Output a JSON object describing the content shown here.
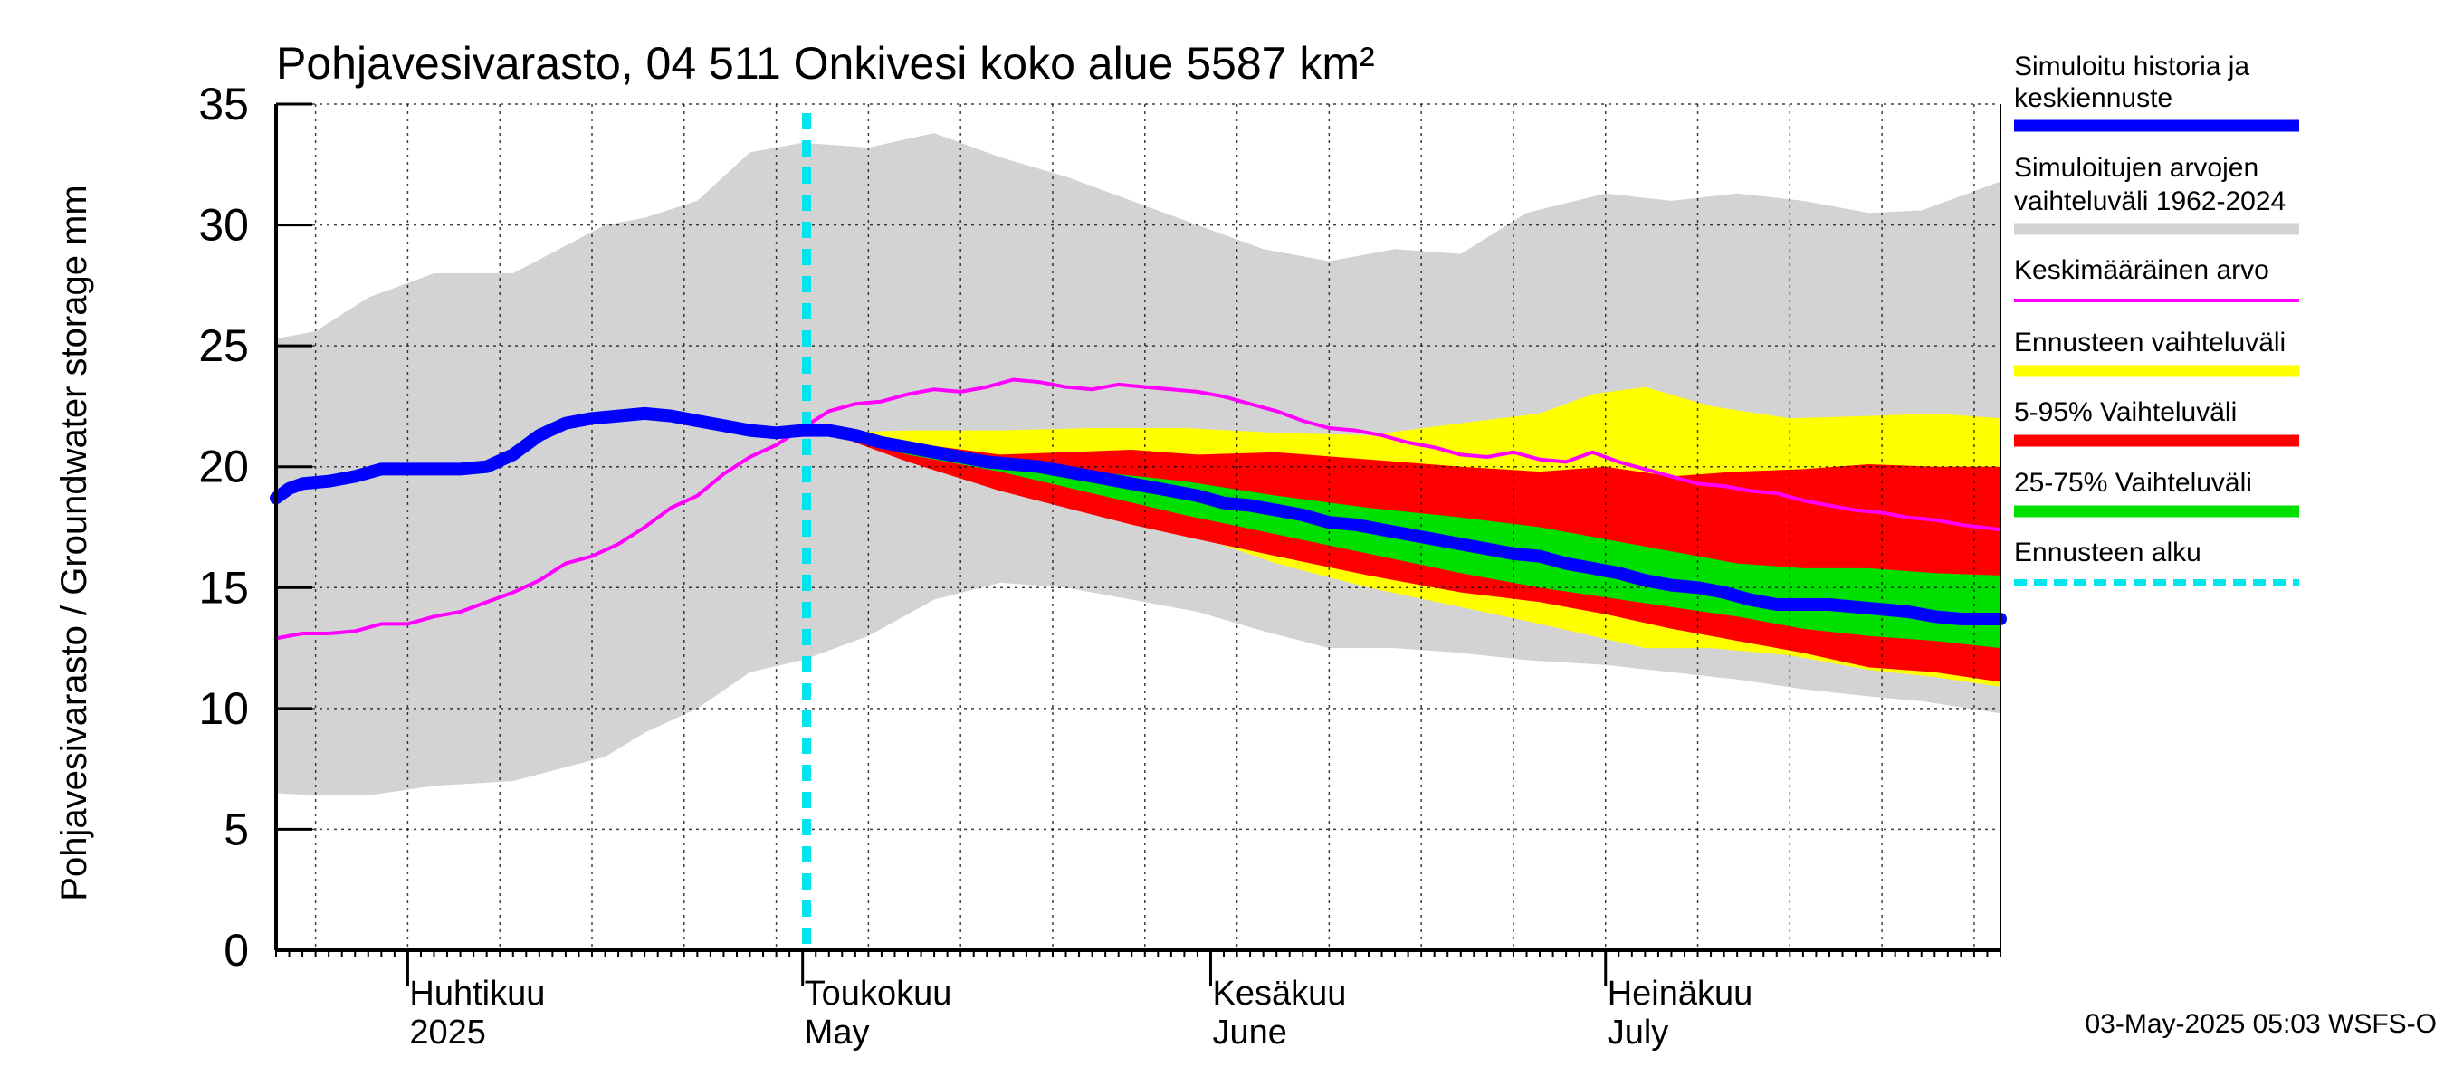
{
  "chart_data": {
    "type": "area",
    "title": "Pohjavesivarasto, 04 511 Onkivesi koko alue 5587 km²",
    "ylabel": "Pohjavesivarasto / Groundwater storage   mm",
    "ylim": [
      0,
      35
    ],
    "yticks": [
      "0",
      "5",
      "10",
      "15",
      "20",
      "25",
      "30",
      "35"
    ],
    "ytick_values": [
      0,
      5,
      10,
      15,
      20,
      25,
      30,
      35
    ],
    "x_start": "2025-03-22",
    "x_end": "2025-07-31",
    "forecast_start": "2025-05-03",
    "months": [
      {
        "line1": "Huhtikuu",
        "line2": "2025",
        "day": 10
      },
      {
        "line1": "Toukokuu",
        "line2": "May",
        "day": 40
      },
      {
        "line1": "Kesäkuu",
        "line2": "June",
        "day": 71
      },
      {
        "line1": "Heinäkuu",
        "line2": "July",
        "day": 101
      }
    ],
    "series": [
      {
        "name": "Simuloitujen arvojen vaihteluväli 1962-2024",
        "color": "#d3d3d3",
        "days": [
          0,
          3,
          7,
          12,
          18,
          25,
          28,
          32,
          36,
          40,
          45,
          50,
          55,
          60,
          65,
          70,
          75,
          80,
          85,
          90,
          95,
          101,
          106,
          111,
          116,
          121,
          125,
          131
        ],
        "upper": [
          25.3,
          25.6,
          27.0,
          28.0,
          28.0,
          30.0,
          30.3,
          31.0,
          33.0,
          33.4,
          33.2,
          33.8,
          32.8,
          32.0,
          31.0,
          30.0,
          29.0,
          28.5,
          29.0,
          28.8,
          30.5,
          31.3,
          31.0,
          31.3,
          31.0,
          30.5,
          30.6,
          31.8
        ],
        "lower": [
          6.5,
          6.4,
          6.4,
          6.8,
          7.0,
          8.0,
          9.0,
          10.0,
          11.5,
          12.0,
          13.0,
          14.5,
          15.2,
          15.0,
          14.5,
          14.0,
          13.2,
          12.5,
          12.5,
          12.3,
          12.0,
          11.8,
          11.5,
          11.2,
          10.8,
          10.5,
          10.3,
          9.8
        ]
      },
      {
        "name": "Ennusteen vaihteluväli",
        "color": "#ffff00",
        "days": [
          42,
          48,
          55,
          62,
          69,
          76,
          83,
          90,
          96,
          100,
          104,
          109,
          115,
          121,
          126,
          131
        ],
        "upper": [
          21.4,
          21.5,
          21.5,
          21.6,
          21.6,
          21.4,
          21.3,
          21.8,
          22.2,
          23.0,
          23.3,
          22.5,
          22.0,
          22.1,
          22.2,
          22.0
        ],
        "lower": [
          21.4,
          20.3,
          19.2,
          18.3,
          17.3,
          16.0,
          15.0,
          14.2,
          13.5,
          13.0,
          12.5,
          12.5,
          12.2,
          11.6,
          11.3,
          10.9
        ]
      },
      {
        "name": "5-95% Vaihteluväli",
        "color": "#ff0000",
        "days": [
          42,
          48,
          55,
          60,
          65,
          70,
          76,
          83,
          90,
          96,
          101,
          106,
          111,
          116,
          121,
          126,
          131
        ],
        "upper": [
          21.4,
          21.0,
          20.5,
          20.6,
          20.7,
          20.5,
          20.6,
          20.3,
          20.0,
          19.8,
          20.0,
          19.6,
          19.8,
          19.9,
          20.1,
          20.0,
          20.0
        ],
        "lower": [
          21.4,
          20.2,
          19.0,
          18.3,
          17.6,
          17.0,
          16.3,
          15.5,
          14.8,
          14.4,
          13.9,
          13.3,
          12.8,
          12.3,
          11.7,
          11.5,
          11.1
        ]
      },
      {
        "name": "25-75% Vaihteluväli",
        "color": "#00e000",
        "days": [
          42,
          48,
          55,
          62,
          69,
          76,
          83,
          90,
          96,
          101,
          106,
          111,
          116,
          121,
          126,
          131
        ],
        "upper": [
          21.4,
          20.8,
          20.3,
          19.8,
          19.4,
          18.8,
          18.3,
          17.9,
          17.5,
          17.0,
          16.5,
          16.0,
          15.8,
          15.8,
          15.6,
          15.5
        ],
        "lower": [
          21.4,
          20.5,
          19.8,
          18.9,
          18.0,
          17.2,
          16.4,
          15.6,
          15.0,
          14.6,
          14.2,
          13.8,
          13.3,
          13.0,
          12.8,
          12.5
        ]
      },
      {
        "name": "Keskimääräinen arvo",
        "color": "#ff00ff",
        "days": [
          0,
          2,
          4,
          6,
          8,
          10,
          12,
          14,
          16,
          18,
          20,
          22,
          24,
          26,
          28,
          30,
          32,
          34,
          36,
          38,
          40,
          42,
          44,
          46,
          48,
          50,
          52,
          54,
          56,
          58,
          60,
          62,
          64,
          66,
          68,
          70,
          72,
          74,
          76,
          78,
          80,
          82,
          84,
          86,
          88,
          90,
          92,
          94,
          96,
          98,
          100,
          102,
          104,
          106,
          108,
          110,
          112,
          114,
          116,
          118,
          120,
          122,
          124,
          126,
          128,
          131
        ],
        "values": [
          12.9,
          13.1,
          13.1,
          13.2,
          13.5,
          13.5,
          13.8,
          14.0,
          14.4,
          14.8,
          15.3,
          16.0,
          16.3,
          16.8,
          17.5,
          18.3,
          18.8,
          19.7,
          20.4,
          20.9,
          21.6,
          22.3,
          22.6,
          22.7,
          23.0,
          23.2,
          23.1,
          23.3,
          23.6,
          23.5,
          23.3,
          23.2,
          23.4,
          23.3,
          23.2,
          23.1,
          22.9,
          22.6,
          22.3,
          21.9,
          21.6,
          21.5,
          21.3,
          21.0,
          20.8,
          20.5,
          20.4,
          20.6,
          20.3,
          20.2,
          20.6,
          20.2,
          19.9,
          19.6,
          19.3,
          19.2,
          19.0,
          18.9,
          18.6,
          18.4,
          18.2,
          18.1,
          17.9,
          17.8,
          17.6,
          17.4
        ]
      },
      {
        "name": "Simuloitu historia ja keskiennuste",
        "color": "#0000ff",
        "days": [
          0,
          1,
          2,
          4,
          6,
          8,
          10,
          12,
          14,
          16,
          18,
          20,
          22,
          24,
          26,
          28,
          30,
          32,
          34,
          36,
          38,
          40,
          42,
          44,
          46,
          48,
          50,
          52,
          54,
          56,
          58,
          60,
          62,
          64,
          66,
          68,
          70,
          72,
          74,
          76,
          78,
          80,
          82,
          84,
          86,
          88,
          90,
          92,
          94,
          96,
          98,
          100,
          102,
          104,
          106,
          108,
          110,
          112,
          114,
          116,
          118,
          120,
          122,
          124,
          126,
          128,
          131
        ],
        "values": [
          18.7,
          19.1,
          19.3,
          19.4,
          19.6,
          19.9,
          19.9,
          19.9,
          19.9,
          20.0,
          20.5,
          21.3,
          21.8,
          22.0,
          22.1,
          22.2,
          22.1,
          21.9,
          21.7,
          21.5,
          21.4,
          21.5,
          21.5,
          21.3,
          21.0,
          20.8,
          20.6,
          20.4,
          20.2,
          20.1,
          20.0,
          19.8,
          19.6,
          19.4,
          19.2,
          19.0,
          18.8,
          18.5,
          18.4,
          18.2,
          18.0,
          17.7,
          17.6,
          17.4,
          17.2,
          17.0,
          16.8,
          16.6,
          16.4,
          16.3,
          16.0,
          15.8,
          15.6,
          15.3,
          15.1,
          15.0,
          14.8,
          14.5,
          14.3,
          14.3,
          14.3,
          14.2,
          14.1,
          14.0,
          13.8,
          13.7,
          13.7
        ]
      }
    ]
  },
  "legend": [
    {
      "key": "history",
      "line1": "Simuloitu historia ja",
      "line2": "keskiennuste",
      "color": "#0000ff",
      "style": "thick"
    },
    {
      "key": "range",
      "line1": "Simuloitujen arvojen",
      "line2": "vaihteluväli 1962-2024",
      "color": "#d3d3d3",
      "style": "thick"
    },
    {
      "key": "mean",
      "line1": "Keskimääräinen arvo",
      "line2": "",
      "color": "#ff00ff",
      "style": "thin"
    },
    {
      "key": "forecast-range",
      "line1": "Ennusteen vaihteluväli",
      "line2": "",
      "color": "#ffff00",
      "style": "thick"
    },
    {
      "key": "p5-95",
      "line1": "5-95% Vaihteluväli",
      "line2": "",
      "color": "#ff0000",
      "style": "thick"
    },
    {
      "key": "p25-75",
      "line1": "25-75% Vaihteluväli",
      "line2": "",
      "color": "#00e000",
      "style": "thick"
    },
    {
      "key": "forecast-start",
      "line1": "Ennusteen alku",
      "line2": "",
      "color": "#00e5ee",
      "style": "dashed"
    }
  ],
  "footer": {
    "timestamp": "03-May-2025 05:03 WSFS-O"
  }
}
